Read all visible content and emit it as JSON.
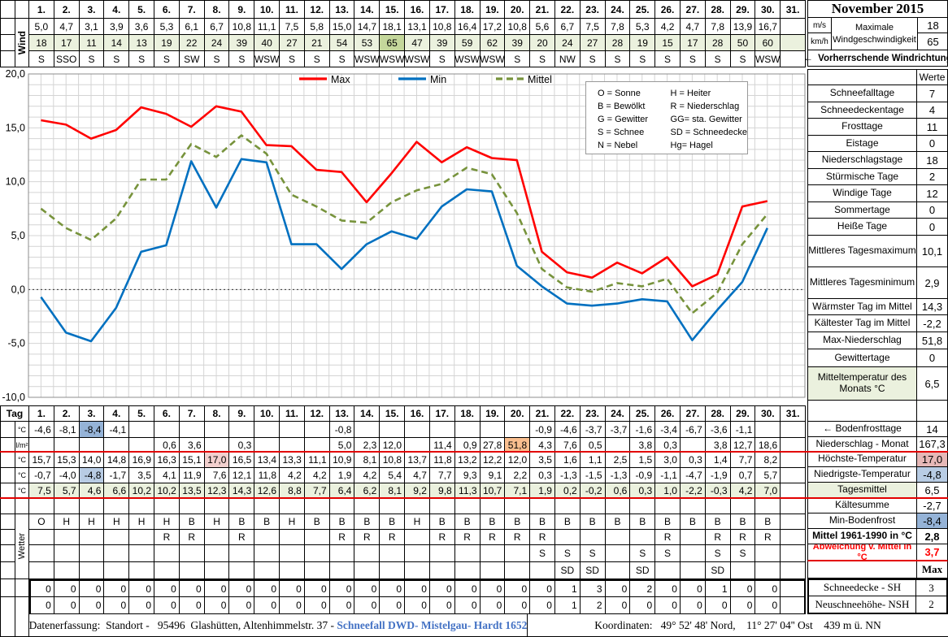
{
  "title": "November 2015",
  "days": [
    "1.",
    "2.",
    "3.",
    "4.",
    "5.",
    "6.",
    "7.",
    "8.",
    "9.",
    "10.",
    "11.",
    "12.",
    "13.",
    "14.",
    "15.",
    "16.",
    "17.",
    "18.",
    "19.",
    "20.",
    "21.",
    "22.",
    "23.",
    "24.",
    "25.",
    "26.",
    "27.",
    "28.",
    "29.",
    "30.",
    "31."
  ],
  "wind": {
    "label": "Wind",
    "speed_ms": [
      "5,0",
      "4,7",
      "3,1",
      "3,9",
      "3,6",
      "5,3",
      "6,1",
      "6,7",
      "10,8",
      "11,1",
      "7,5",
      "5,8",
      "15,0",
      "14,7",
      "18,1",
      "13,1",
      "10,8",
      "16,4",
      "17,2",
      "10,8",
      "5,6",
      "6,7",
      "7,5",
      "7,8",
      "5,3",
      "4,2",
      "4,7",
      "7,8",
      "13,9",
      "16,7",
      ""
    ],
    "speed_kmh": [
      "18",
      "17",
      "11",
      "14",
      "13",
      "19",
      "22",
      "24",
      "39",
      "40",
      "27",
      "21",
      "54",
      "53",
      "65",
      "47",
      "39",
      "59",
      "62",
      "39",
      "20",
      "24",
      "27",
      "28",
      "19",
      "15",
      "17",
      "28",
      "50",
      "60",
      ""
    ],
    "direction": [
      "S",
      "SSO",
      "S",
      "S",
      "S",
      "S",
      "SW",
      "S",
      "S",
      "WSW",
      "S",
      "S",
      "S",
      "WSW",
      "WSW",
      "WSW",
      "S",
      "WSW",
      "WSW",
      "S",
      "S",
      "NW",
      "S",
      "S",
      "S",
      "S",
      "S",
      "S",
      "S",
      "WSW",
      ""
    ],
    "kmh_highlight_day": 15,
    "kmh_row_color": "#ebf1de",
    "kmh_highlight_color": "#c4d79b",
    "units": {
      "ms": "m/s",
      "kmh": "km/h"
    },
    "max_wind": {
      "label": "Maximale Windgeschwindigkeit",
      "ms": "18",
      "kmh": "65"
    },
    "direction_note": "←  Vorherrschende Windrichtung"
  },
  "chart_data": {
    "type": "line",
    "x_days": [
      1,
      2,
      3,
      4,
      5,
      6,
      7,
      8,
      9,
      10,
      11,
      12,
      13,
      14,
      15,
      16,
      17,
      18,
      19,
      20,
      21,
      22,
      23,
      24,
      25,
      26,
      27,
      28,
      29,
      30
    ],
    "series": [
      {
        "name": "Max",
        "color": "#ff0000",
        "style": "solid",
        "values": [
          15.7,
          15.3,
          14.0,
          14.8,
          16.9,
          16.3,
          15.1,
          17.0,
          16.5,
          13.4,
          13.3,
          11.1,
          10.9,
          8.1,
          10.8,
          13.7,
          11.8,
          13.2,
          12.2,
          12.0,
          3.5,
          1.6,
          1.1,
          2.5,
          1.5,
          3.0,
          0.3,
          1.4,
          7.7,
          8.2
        ]
      },
      {
        "name": "Min",
        "color": "#0070c0",
        "style": "solid",
        "values": [
          -0.7,
          -4.0,
          -4.8,
          -1.7,
          3.5,
          4.1,
          11.9,
          7.6,
          12.1,
          11.8,
          4.2,
          4.2,
          1.9,
          4.2,
          5.4,
          4.7,
          7.7,
          9.3,
          9.1,
          2.2,
          0.3,
          -1.3,
          -1.5,
          -1.3,
          -0.9,
          -1.1,
          -4.7,
          -1.9,
          0.7,
          5.7
        ]
      },
      {
        "name": "Mittel",
        "color": "#77933c",
        "style": "dashed",
        "values": [
          7.5,
          5.7,
          4.6,
          6.6,
          10.2,
          10.2,
          13.5,
          12.3,
          14.3,
          12.6,
          8.8,
          7.7,
          6.4,
          6.2,
          8.1,
          9.2,
          9.8,
          11.3,
          10.7,
          7.1,
          1.9,
          0.2,
          -0.2,
          0.6,
          0.3,
          1.0,
          -2.2,
          -0.3,
          4.2,
          7.0
        ]
      }
    ],
    "ylim": [
      -10,
      20
    ],
    "ytick_step": 5,
    "ytick_labels": [
      "20,0",
      "15,0",
      "10,0",
      "5,0",
      "0,0",
      "-5,0",
      "-10,0"
    ],
    "grid": true,
    "legend_position": "top"
  },
  "weather_key": {
    "left": [
      "O = Sonne",
      "B = Bewölkt",
      "G = Gewitter",
      "S = Schnee",
      "N = Nebel"
    ],
    "right": [
      "H = Heiter",
      "R = Niederschlag",
      "GG= sta. Gewitter",
      "SD = Schneedecke",
      "Hg= Hagel"
    ]
  },
  "right_panel": {
    "werte_label": "Werte",
    "stats": [
      {
        "label": "Schneefalltage",
        "value": "7"
      },
      {
        "label": "Schneedeckentage",
        "value": "4"
      },
      {
        "label": "Frosttage",
        "value": "11"
      },
      {
        "label": "Eistage",
        "value": "0"
      },
      {
        "label": "Niederschlagstage",
        "value": "18"
      },
      {
        "label": "Stürmische Tage",
        "value": "2"
      },
      {
        "label": "Windige Tage",
        "value": "12"
      },
      {
        "label": "Sommertage",
        "value": "0"
      },
      {
        "label": "Heiße Tage",
        "value": "0"
      },
      {
        "label": "Mittleres Tagesmaximum",
        "value": "10,1",
        "twoline": true
      },
      {
        "label": "Mittleres Tagesminimum",
        "value": "2,9",
        "twoline": true
      },
      {
        "label": "Wärmster Tag im Mittel",
        "value": "14,3"
      },
      {
        "label": "Kältester Tag im Mittel",
        "value": "-2,2"
      },
      {
        "label": "Max-Niederschlag",
        "value": "51,8"
      },
      {
        "label": "Gewittertage",
        "value": "0"
      },
      {
        "label": "Mitteltemperatur des Monats °C",
        "value": "6,5",
        "twoline": true,
        "label_bg": "#ebf1de"
      }
    ],
    "lower": [
      {
        "label": "←  Bodenfrosttage",
        "value": "14"
      },
      {
        "label": "Niederschlag - Monat",
        "value": "167,3"
      },
      {
        "label": "Höchste-Temperatur",
        "value": "17,0",
        "value_bg": "#e6b8b7"
      },
      {
        "label": "Niedrigste-Temperatur",
        "value": "-4,8",
        "value_bg": "#b8cce4"
      },
      {
        "label": "Tagesmittel",
        "value": "6,5",
        "label_bg": "#ebf1de"
      },
      {
        "label": "Kältesumme",
        "value": "-2,7"
      },
      {
        "label": "Min-Bodenfrost",
        "value": "-8,4",
        "value_bg": "#95b3d7"
      },
      {
        "label": "Mittel 1961-1990 in °C",
        "value": "2,8",
        "bold": true
      },
      {
        "label": "Abweichung v. Mittel in °C",
        "value": "3,7",
        "red": true
      },
      {
        "label": "",
        "value": "Max",
        "bold": true,
        "serif": true
      },
      {
        "label": "Schneedecke -   SH",
        "value": "3",
        "thick": "top",
        "serif": true
      },
      {
        "label": "Neuschneehöhe- NSH",
        "value": "2",
        "thick": "bottom",
        "serif": true
      }
    ]
  },
  "daily": {
    "tag_label": "Tag",
    "wetter_label": "Wetter",
    "rows": [
      {
        "name": "bodenfrost-row",
        "unit": "°C",
        "values": [
          "-4,6",
          "-8,1",
          "-8,4",
          "-4,1",
          "",
          "",
          "",
          "",
          "",
          "",
          "",
          "",
          "-0,8",
          "",
          "",
          "",
          "",
          "",
          "",
          "",
          "-0,9",
          "-4,6",
          "-3,7",
          "-3,7",
          "-1,6",
          "-3,4",
          "-6,7",
          "-3,6",
          "-1,1",
          "",
          ""
        ],
        "highlights": {
          "3": "#95b3d7"
        }
      },
      {
        "name": "niederschlag-row",
        "unit": "l/m²",
        "values": [
          "",
          "",
          "",
          "",
          "",
          "0,6",
          "3,6",
          "",
          "0,3",
          "",
          "",
          "",
          "5,0",
          "2,3",
          "12,0",
          "",
          "11,4",
          "0,9",
          "27,8",
          "51,8",
          "4,3",
          "7,6",
          "0,5",
          "",
          "3,8",
          "0,3",
          "",
          "3,8",
          "12,7",
          "18,6",
          ""
        ],
        "highlights": {
          "20": "#fabf8f"
        }
      },
      {
        "name": "hoechste-temp-row",
        "unit": "°C",
        "values": [
          "15,7",
          "15,3",
          "14,0",
          "14,8",
          "16,9",
          "16,3",
          "15,1",
          "17,0",
          "16,5",
          "13,4",
          "13,3",
          "11,1",
          "10,9",
          "8,1",
          "10,8",
          "13,7",
          "11,8",
          "13,2",
          "12,2",
          "12,0",
          "3,5",
          "1,6",
          "1,1",
          "2,5",
          "1,5",
          "3,0",
          "0,3",
          "1,4",
          "7,7",
          "8,2",
          ""
        ],
        "highlights": {
          "8": "#f2d0ce"
        }
      },
      {
        "name": "niedrigste-temp-row",
        "unit": "°C",
        "values": [
          "-0,7",
          "-4,0",
          "-4,8",
          "-1,7",
          "3,5",
          "4,1",
          "11,9",
          "7,6",
          "12,1",
          "11,8",
          "4,2",
          "4,2",
          "1,9",
          "4,2",
          "5,4",
          "4,7",
          "7,7",
          "9,3",
          "9,1",
          "2,2",
          "0,3",
          "-1,3",
          "-1,5",
          "-1,3",
          "-0,9",
          "-1,1",
          "-4,7",
          "-1,9",
          "0,7",
          "5,7",
          ""
        ],
        "highlights": {
          "3": "#b8cce4"
        }
      },
      {
        "name": "tagesmittel-row",
        "unit": "°C",
        "row_bg": "#ebf1de",
        "values": [
          "7,5",
          "5,7",
          "4,6",
          "6,6",
          "10,2",
          "10,2",
          "13,5",
          "12,3",
          "14,3",
          "12,6",
          "8,8",
          "7,7",
          "6,4",
          "6,2",
          "8,1",
          "9,2",
          "9,8",
          "11,3",
          "10,7",
          "7,1",
          "1,9",
          "0,2",
          "-0,2",
          "0,6",
          "0,3",
          "1,0",
          "-2,2",
          "-0,3",
          "4,2",
          "7,0",
          ""
        ],
        "highlights": {}
      }
    ],
    "wetter_rows": [
      [
        "O",
        "H",
        "H",
        "H",
        "H",
        "H",
        "B",
        "H",
        "B",
        "B",
        "H",
        "B",
        "B",
        "B",
        "B",
        "H",
        "B",
        "B",
        "B",
        "B",
        "B",
        "B",
        "B",
        "B",
        "B",
        "B",
        "B",
        "B",
        "B",
        "B",
        ""
      ],
      [
        "",
        "",
        "",
        "",
        "",
        "R",
        "R",
        "",
        "R",
        "",
        "",
        "",
        "R",
        "R",
        "R",
        "",
        "R",
        "R",
        "R",
        "R",
        "R",
        "",
        "",
        "",
        "",
        "R",
        "",
        "R",
        "R",
        "R",
        ""
      ],
      [
        "",
        "",
        "",
        "",
        "",
        "",
        "",
        "",
        "",
        "",
        "",
        "",
        "",
        "",
        "",
        "",
        "",
        "",
        "",
        "",
        "S",
        "S",
        "S",
        "",
        "S",
        "S",
        "",
        "S",
        "S",
        "",
        ""
      ],
      [
        "",
        "",
        "",
        "",
        "",
        "",
        "",
        "",
        "",
        "",
        "",
        "",
        "",
        "",
        "",
        "",
        "",
        "",
        "",
        "",
        "",
        "SD",
        "SD",
        "",
        "SD",
        "",
        "",
        "SD",
        "",
        "",
        ""
      ]
    ],
    "snow_rows": [
      {
        "name": "schneedecke-sh-row",
        "values": [
          "0",
          "0",
          "0",
          "0",
          "0",
          "0",
          "0",
          "0",
          "0",
          "0",
          "0",
          "0",
          "0",
          "0",
          "0",
          "0",
          "0",
          "0",
          "0",
          "0",
          "0",
          "1",
          "3",
          "0",
          "2",
          "0",
          "0",
          "1",
          "0",
          "0",
          ""
        ]
      },
      {
        "name": "neuschneehoehe-nsh-row",
        "values": [
          "0",
          "0",
          "0",
          "0",
          "0",
          "0",
          "0",
          "0",
          "0",
          "0",
          "0",
          "0",
          "0",
          "0",
          "0",
          "0",
          "0",
          "0",
          "0",
          "0",
          "0",
          "1",
          "2",
          "0",
          "0",
          "0",
          "0",
          "0",
          "0",
          "0",
          ""
        ]
      }
    ]
  },
  "footer": {
    "left_black": "Datenerfassung:  Standort -   95496  Glashütten, Altenhimmelstr. 37 - ",
    "left_blue": "Schneefall DWD- Mistelgau- Hardt 1652",
    "right": "Koordinaten:   49° 52' 48' Nord,    11° 27' 04'' Ost    439 m ü. NN"
  }
}
